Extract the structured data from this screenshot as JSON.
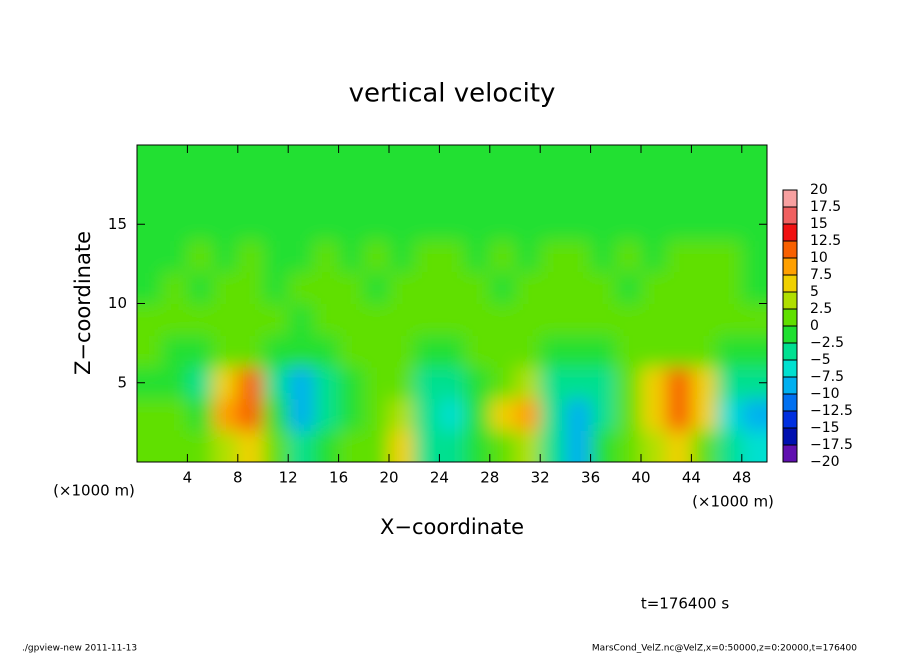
{
  "chart_data": {
    "type": "heatmap",
    "title": "vertical velocity",
    "xlabel": "X−coordinate",
    "ylabel": "Z−coordinate",
    "xunit": "(×1000 m)",
    "yunit": "(×1000 m)",
    "xlim": [
      0,
      50
    ],
    "ylim": [
      0,
      20
    ],
    "xticks": [
      4,
      8,
      12,
      16,
      20,
      24,
      28,
      32,
      36,
      40,
      44,
      48
    ],
    "yticks": [
      5,
      10,
      15
    ],
    "x": [
      1,
      3,
      5,
      7,
      9,
      11,
      13,
      15,
      17,
      19,
      21,
      23,
      25,
      27,
      29,
      31,
      33,
      35,
      37,
      39,
      41,
      43,
      45,
      47,
      49
    ],
    "y": [
      1,
      3,
      5,
      7,
      9,
      11,
      13,
      15,
      17,
      19
    ],
    "z": [
      [
        0,
        1,
        0,
        3,
        5,
        0,
        -3,
        -1,
        0,
        2,
        6,
        -4,
        -5,
        -1,
        2,
        4,
        -3,
        -9,
        -2,
        1,
        4,
        7,
        2,
        -5,
        -7
      ],
      [
        0,
        1,
        -1,
        8,
        12,
        -1,
        -9,
        -3,
        -1,
        1,
        3,
        -5,
        -6,
        -2,
        5,
        9,
        -4,
        -10,
        -3,
        1,
        6,
        12,
        6,
        -7,
        -10
      ],
      [
        -1,
        -1,
        -3,
        7,
        10,
        -3,
        -8,
        -4,
        -1,
        0,
        1,
        -3,
        -4,
        -1,
        2,
        3,
        -5,
        -5,
        -3,
        2,
        5,
        10,
        5,
        -5,
        -3
      ],
      [
        0,
        -1,
        -2,
        1,
        2,
        -1,
        -2,
        -1,
        0,
        0,
        0,
        -1,
        -1,
        0,
        1,
        1,
        -1,
        -1,
        -1,
        1,
        1,
        2,
        1,
        -1,
        -1
      ],
      [
        0,
        1,
        0,
        1,
        0,
        0,
        -1,
        0,
        1,
        0,
        1,
        0,
        0,
        1,
        1,
        0,
        0,
        1,
        0,
        0,
        1,
        0,
        1,
        0,
        0
      ],
      [
        -1,
        0,
        -1,
        0,
        1,
        -1,
        0,
        1,
        0,
        -1,
        0,
        1,
        0,
        0,
        -1,
        1,
        0,
        0,
        1,
        -1,
        0,
        1,
        0,
        1,
        -1
      ],
      [
        -1,
        -1,
        0,
        -1,
        0,
        -1,
        -1,
        0,
        -1,
        0,
        -1,
        0,
        1,
        -1,
        0,
        -1,
        0,
        0,
        -1,
        0,
        -1,
        0,
        1,
        0,
        -1
      ],
      [
        -1,
        -1,
        -1,
        -1,
        -1,
        -1,
        -1,
        -1,
        -1,
        -1,
        -1,
        -1,
        -1,
        -1,
        -1,
        -1,
        -1,
        -1,
        -1,
        -1,
        -1,
        -1,
        -1,
        -1,
        -1
      ],
      [
        -1,
        -1,
        -1,
        -1,
        -1,
        -1,
        -1,
        -1,
        -1,
        -1,
        -1,
        -1,
        -1,
        -1,
        -1,
        -1,
        -1,
        -1,
        -1,
        -1,
        -1,
        -1,
        -1,
        -1,
        -1
      ],
      [
        -1,
        -1,
        -1,
        -1,
        -1,
        -1,
        -1,
        -1,
        -1,
        -1,
        -1,
        -1,
        -1,
        -1,
        -1,
        -1,
        -1,
        -1,
        -1,
        -1,
        -1,
        -1,
        -1,
        -1,
        -1
      ]
    ],
    "colorbar": {
      "ticks": [
        {
          "value": -20,
          "label": "−20"
        },
        {
          "value": -17.5,
          "label": "−17.5"
        },
        {
          "value": -15,
          "label": "−15"
        },
        {
          "value": -12.5,
          "label": "−12.5"
        },
        {
          "value": -10,
          "label": "−10"
        },
        {
          "value": -7.5,
          "label": "−7.5"
        },
        {
          "value": -5,
          "label": "−5"
        },
        {
          "value": -2.5,
          "label": "−2.5"
        },
        0,
        2.5,
        5,
        7.5,
        10,
        12.5,
        15,
        17.5,
        20
      ],
      "colors": [
        "#6010b0",
        "#0010b0",
        "#0030e0",
        "#0070f0",
        "#00b0f0",
        "#00e0d0",
        "#00e090",
        "#20e030",
        "#60e000",
        "#b0e000",
        "#f0d000",
        "#ffa000",
        "#f86000",
        "#f01010",
        "#f06060",
        "#f8a0a0"
      ]
    },
    "time": "t=176400 s",
    "footer_left": "./gpview-new  2011-11-13",
    "footer_right": "MarsCond_VelZ.nc@VelZ,x=0:50000,z=0:20000,t=176400"
  }
}
